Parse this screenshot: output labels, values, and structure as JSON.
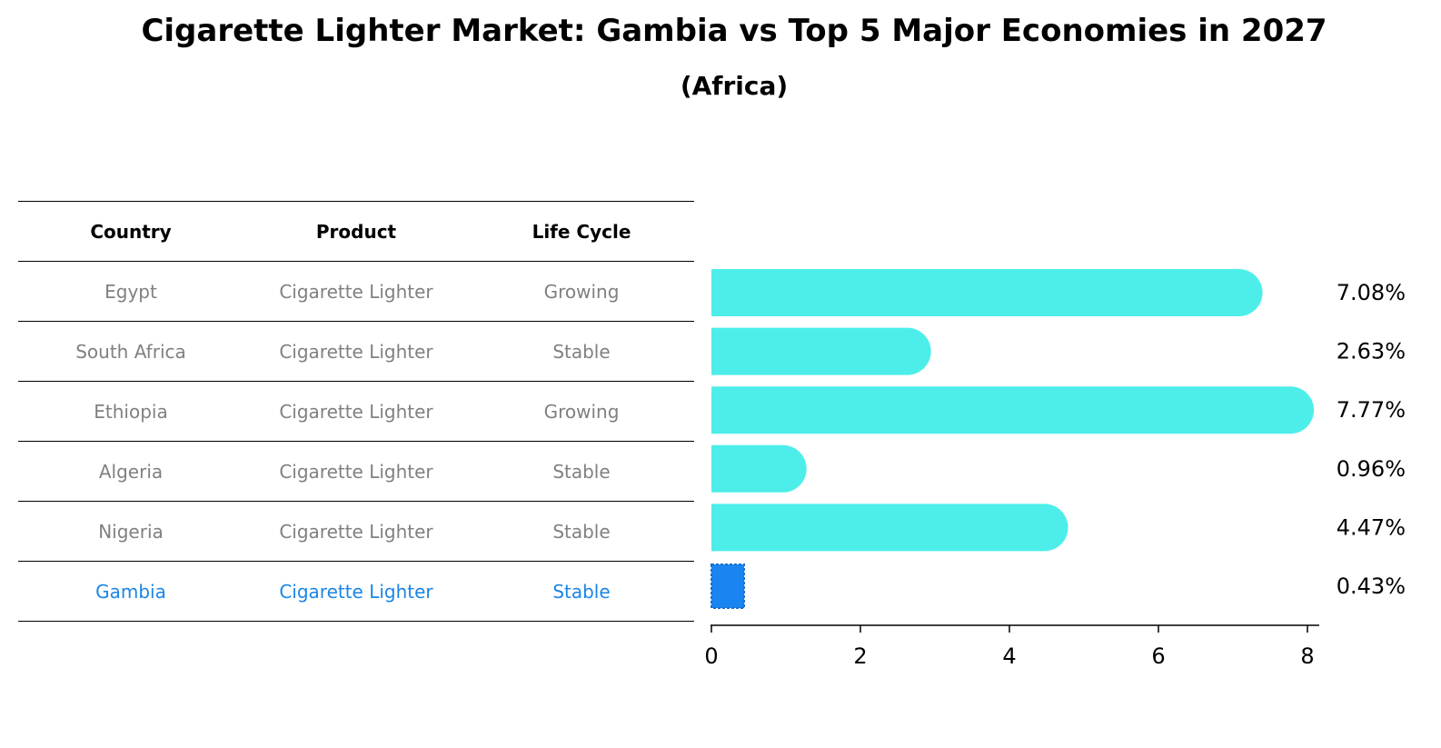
{
  "title": "Cigarette Lighter Market: Gambia vs Top 5 Major Economies in 2027",
  "subtitle": "(Africa)",
  "table": {
    "headers": [
      "Country",
      "Product",
      "Life Cycle"
    ],
    "rows": [
      {
        "country": "Egypt",
        "product": "Cigarette Lighter",
        "life_cycle": "Growing"
      },
      {
        "country": "South Africa",
        "product": "Cigarette Lighter",
        "life_cycle": "Stable"
      },
      {
        "country": "Ethiopia",
        "product": "Cigarette Lighter",
        "life_cycle": "Growing"
      },
      {
        "country": "Algeria",
        "product": "Cigarette Lighter",
        "life_cycle": "Stable"
      },
      {
        "country": "Nigeria",
        "product": "Cigarette Lighter",
        "life_cycle": "Stable"
      },
      {
        "country": "Gambia",
        "product": "Cigarette Lighter",
        "life_cycle": "Stable"
      }
    ]
  },
  "chart_data": {
    "type": "bar",
    "orientation": "horizontal",
    "categories": [
      "Egypt",
      "South Africa",
      "Ethiopia",
      "Algeria",
      "Nigeria",
      "Gambia"
    ],
    "values": [
      7.08,
      2.63,
      7.77,
      0.96,
      4.47,
      0.43
    ],
    "value_labels": [
      "7.08%",
      "2.63%",
      "7.77%",
      "0.96%",
      "4.47%",
      "0.43%"
    ],
    "highlight": "Gambia",
    "xlim": [
      0,
      8.1
    ],
    "xticks": [
      0,
      2,
      4,
      6,
      8
    ],
    "grid": false,
    "colors": {
      "bar": "#4deeea",
      "highlight": "#1a85f0",
      "text_muted": "#808080",
      "text_highlight": "#1a85e6"
    }
  }
}
